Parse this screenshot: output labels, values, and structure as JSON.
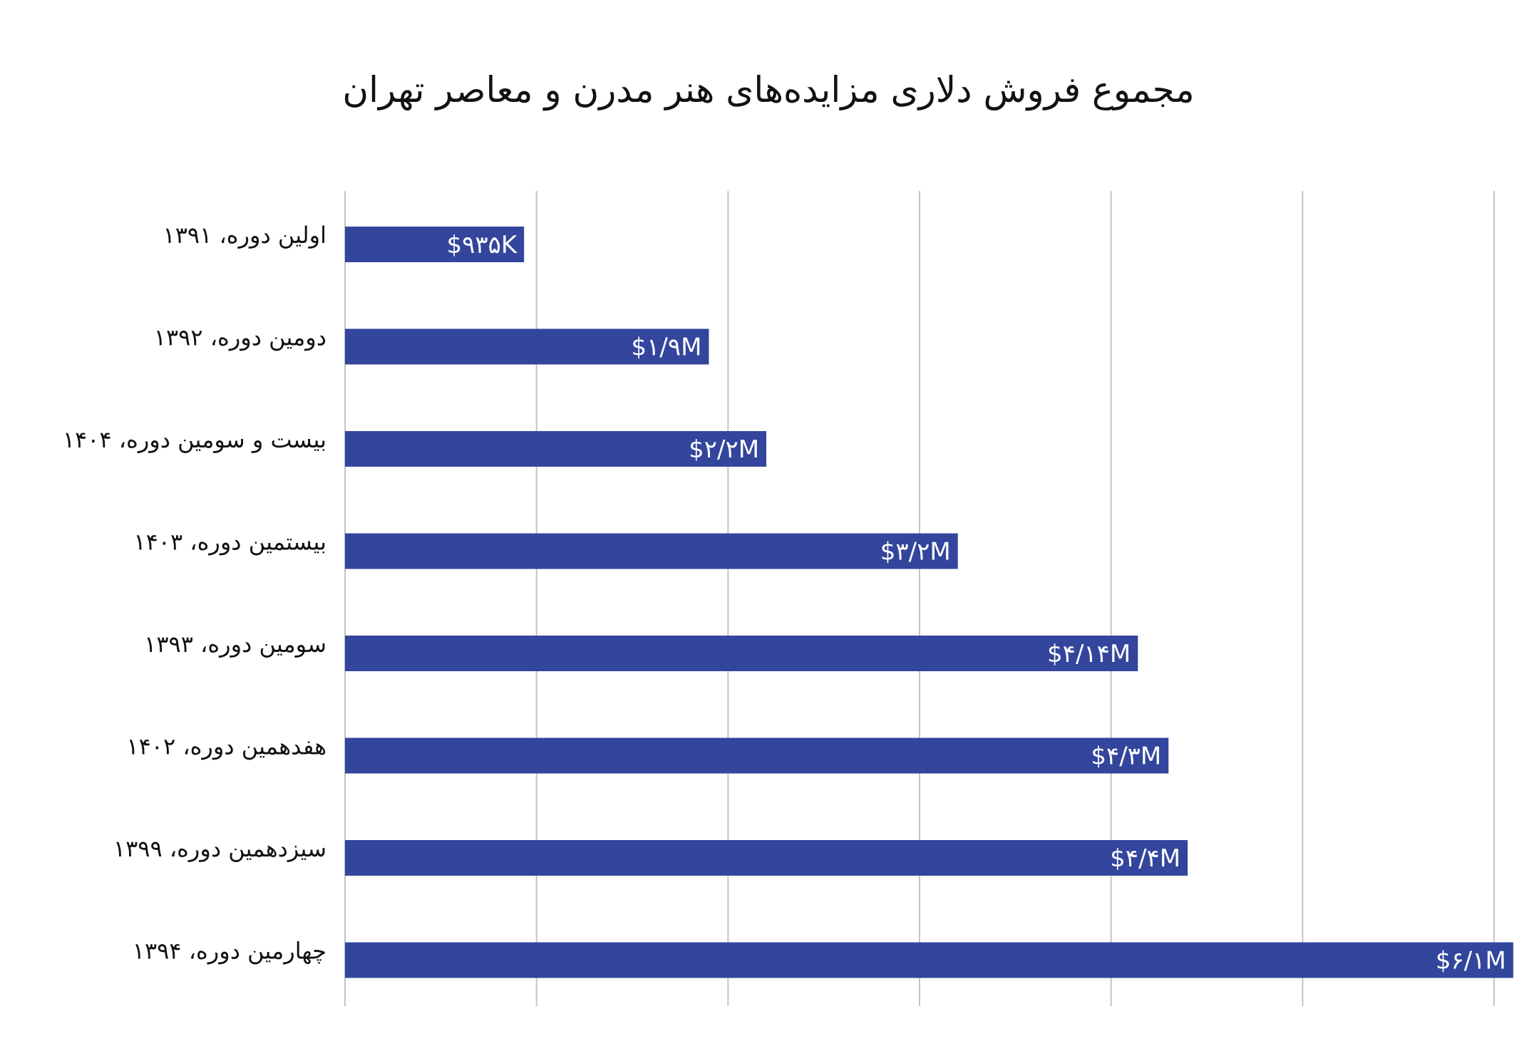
{
  "chart_data": {
    "type": "bar",
    "orientation": "horizontal",
    "title": "مجموع فروش دلاری مزایده‌های هنر مدرن و معاصر تهران",
    "xlabel": "",
    "ylabel": "",
    "xlim": [
      0,
      6
    ],
    "grid": true,
    "legend": "none",
    "bar_color": "#33459c",
    "categories": [
      "اولین دوره، ۱۳۹۱",
      "دومین دوره، ۱۳۹۲",
      "بیست و سومین دوره، ۱۴۰۴",
      "بیستمین دوره، ۱۴۰۳",
      "سومین دوره، ۱۳۹۳",
      "هفدهمین دوره، ۱۴۰۲",
      "سیزدهمین دوره، ۱۳۹۹",
      "چهارمین دوره، ۱۳۹۴"
    ],
    "values": [
      0.935,
      1.9,
      2.2,
      3.2,
      4.14,
      4.3,
      4.4,
      6.1
    ],
    "value_labels": [
      "$۹۳۵K",
      "$۱/۹M",
      "$۲/۲M",
      "$۳/۲M",
      "$۴/۱۴M",
      "$۴/۳M",
      "$۴/۴M",
      "$۶/۱M"
    ]
  }
}
